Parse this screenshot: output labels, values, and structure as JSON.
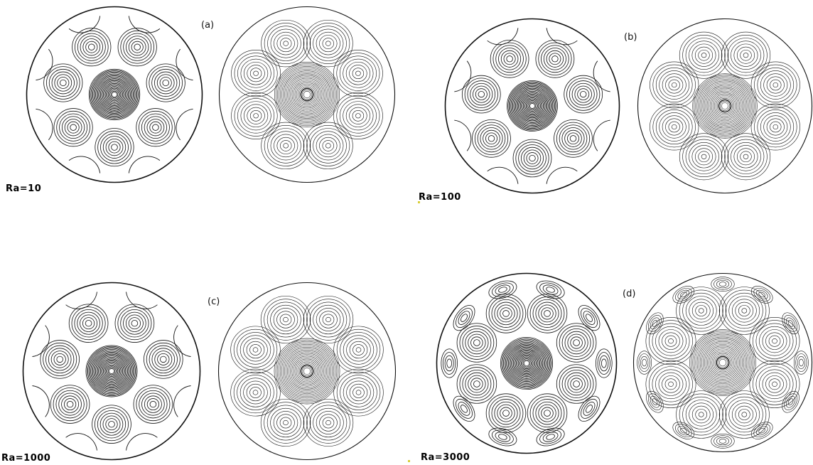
{
  "panels": [
    {
      "letter": "(a)",
      "ra": "Ra=10"
    },
    {
      "letter": "(b)",
      "ra": "Ra=100"
    },
    {
      "letter": "(c)",
      "ra": "Ra=1000"
    },
    {
      "letter": "(d)",
      "ra": "Ra=3000"
    }
  ],
  "colors": {
    "line": "#111111",
    "background": "#ffffff",
    "marker": "#d9cf3a"
  }
}
